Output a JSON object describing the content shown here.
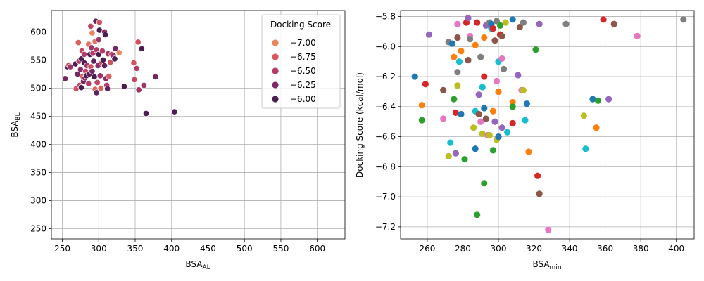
{
  "chart_data": [
    {
      "type": "scatter",
      "xlabel": "BSA",
      "xlabel_sub": "AL",
      "ylabel": "BSA",
      "ylabel_sub": "BL",
      "xlim": [
        235,
        638
      ],
      "ylim": [
        232,
        638
      ],
      "xticks": [
        250,
        300,
        350,
        400,
        450,
        500,
        550,
        600
      ],
      "yticks": [
        250,
        300,
        350,
        400,
        450,
        500,
        550,
        600
      ],
      "grid": true,
      "color_by": "Docking Score",
      "legend": {
        "title": "Docking Score",
        "placement": "top-right",
        "entries": [
          {
            "label": "−7.00",
            "color": "#e8855d"
          },
          {
            "label": "−6.75",
            "color": "#d7585d"
          },
          {
            "label": "−6.50",
            "color": "#b53a66"
          },
          {
            "label": "−6.25",
            "color": "#7f2a68"
          },
          {
            "label": "−6.00",
            "color": "#4a1e50"
          }
        ]
      },
      "points": [
        [
          254,
          517,
          -6.2
        ],
        [
          257,
          538,
          -6.1
        ],
        [
          259,
          541,
          -6.7
        ],
        [
          261,
          538,
          -6.4
        ],
        [
          268,
          543,
          -6.0
        ],
        [
          269,
          499,
          -6.7
        ],
        [
          271,
          525,
          -6.2
        ],
        [
          272,
          581,
          -6.8
        ],
        [
          273,
          548,
          -6.5
        ],
        [
          274,
          505,
          -6.6
        ],
        [
          275,
          533,
          -6.3
        ],
        [
          276,
          552,
          -6.0
        ],
        [
          276,
          501,
          -6.0
        ],
        [
          277,
          566,
          -6.6
        ],
        [
          278,
          521,
          -6.8
        ],
        [
          279,
          512,
          -6.2
        ],
        [
          280,
          560,
          -6.5
        ],
        [
          280,
          545,
          -6.0
        ],
        [
          281,
          518,
          -6.3
        ],
        [
          282,
          530,
          -6.6
        ],
        [
          283,
          522,
          -6.0
        ],
        [
          284,
          540,
          -6.4
        ],
        [
          286,
          578,
          -6.9
        ],
        [
          286,
          508,
          -6.5
        ],
        [
          287,
          525,
          -6.1
        ],
        [
          288,
          560,
          -6.0
        ],
        [
          289,
          538,
          -6.7
        ],
        [
          289,
          610,
          -6.6
        ],
        [
          290,
          572,
          -6.4
        ],
        [
          291,
          530,
          -6.2
        ],
        [
          291,
          598,
          -7.0
        ],
        [
          292,
          562,
          -6.5
        ],
        [
          293,
          548,
          -6.1
        ],
        [
          294,
          520,
          -6.0
        ],
        [
          295,
          498,
          -6.8
        ],
        [
          295,
          583,
          -6.9
        ],
        [
          296,
          619,
          -6.1
        ],
        [
          297,
          492,
          -6.1
        ],
        [
          297,
          568,
          -6.5
        ],
        [
          298,
          510,
          -6.6
        ],
        [
          299,
          540,
          -6.3
        ],
        [
          300,
          586,
          -6.4
        ],
        [
          300,
          560,
          -6.0
        ],
        [
          301,
          617,
          -6.7
        ],
        [
          301,
          603,
          -6.0
        ],
        [
          302,
          522,
          -6.4
        ],
        [
          303,
          500,
          -6.8
        ],
        [
          304,
          545,
          -6.7
        ],
        [
          305,
          566,
          -6.5
        ],
        [
          306,
          550,
          -6.0
        ],
        [
          308,
          600,
          -6.3
        ],
        [
          308,
          540,
          -6.1
        ],
        [
          309,
          595,
          -6.0
        ],
        [
          310,
          517,
          -6.3
        ],
        [
          311,
          505,
          -6.5
        ],
        [
          312,
          499,
          -6.1
        ],
        [
          313,
          561,
          -6.4
        ],
        [
          314,
          521,
          -6.8
        ],
        [
          316,
          546,
          -6.7
        ],
        [
          318,
          560,
          -6.5
        ],
        [
          320,
          558,
          -6.4
        ],
        [
          322,
          552,
          -6.0
        ],
        [
          323,
          570,
          -6.2
        ],
        [
          328,
          563,
          -7.0
        ],
        [
          335,
          503,
          -6.0
        ],
        [
          348,
          545,
          -6.7
        ],
        [
          349,
          515,
          -6.6
        ],
        [
          352,
          535,
          -6.5
        ],
        [
          354,
          582,
          -6.7
        ],
        [
          355,
          497,
          -6.4
        ],
        [
          359,
          570,
          -6.0
        ],
        [
          362,
          505,
          -6.4
        ],
        [
          365,
          455,
          -6.0
        ],
        [
          378,
          520,
          -6.2
        ],
        [
          404,
          458,
          -6.0
        ]
      ]
    },
    {
      "type": "scatter",
      "xlabel": "BSA",
      "xlabel_sub": "min",
      "ylabel": "Docking Score (kcal/mol)",
      "xlim": [
        245,
        410
      ],
      "ylim": [
        -7.28,
        -5.76
      ],
      "xticks": [
        260,
        280,
        300,
        320,
        340,
        360,
        380,
        400
      ],
      "yticks": [
        -7.2,
        -7.0,
        -6.8,
        -6.6,
        -6.4,
        -6.2,
        -6.0,
        -5.8
      ],
      "ytick_labels": [
        "−7.2",
        "−7.0",
        "−6.8",
        "−6.6",
        "−6.4",
        "−6.2",
        "−6.0",
        "−5.8"
      ],
      "grid": true,
      "palette": [
        "#1f77b4",
        "#ff7f0e",
        "#2ca02c",
        "#d62728",
        "#9467bd",
        "#8c564b",
        "#e377c2",
        "#7f7f7f",
        "#bcbd22",
        "#17becf"
      ],
      "points": [
        [
          253,
          -6.2
        ],
        [
          257,
          -6.39
        ],
        [
          257,
          -6.49
        ],
        [
          259,
          -6.25
        ],
        [
          261,
          -5.92
        ],
        [
          269,
          -6.29
        ],
        [
          269,
          -6.48
        ],
        [
          272,
          -5.97
        ],
        [
          272,
          -6.73
        ],
        [
          273,
          -6.64
        ],
        [
          274,
          -5.98
        ],
        [
          275,
          -6.07
        ],
        [
          275,
          -6.35
        ],
        [
          276,
          -6.44
        ],
        [
          276,
          -6.71
        ],
        [
          277,
          -5.94
        ],
        [
          277,
          -5.85
        ],
        [
          277,
          -6.17
        ],
        [
          277,
          -6.26
        ],
        [
          278,
          -6.1
        ],
        [
          279,
          -6.45
        ],
        [
          279,
          -6.03
        ],
        [
          281,
          -6.75
        ],
        [
          282,
          -5.84
        ],
        [
          283,
          -5.81
        ],
        [
          283,
          -6.09
        ],
        [
          284,
          -5.93
        ],
        [
          284,
          -5.95
        ],
        [
          286,
          -6.54
        ],
        [
          287,
          -6.43
        ],
        [
          287,
          -6.68
        ],
        [
          287,
          -5.99
        ],
        [
          288,
          -7.12
        ],
        [
          288,
          -5.84
        ],
        [
          289,
          -6.32
        ],
        [
          289,
          -6.45
        ],
        [
          290,
          -6.5
        ],
        [
          290,
          -6.07
        ],
        [
          291,
          -6.58
        ],
        [
          291,
          -6.27
        ],
        [
          292,
          -6.41
        ],
        [
          292,
          -5.94
        ],
        [
          292,
          -6.91
        ],
        [
          292,
          -6.2
        ],
        [
          293,
          -5.86
        ],
        [
          293,
          -6.48
        ],
        [
          294,
          -6.59
        ],
        [
          295,
          -5.84
        ],
        [
          295,
          -6.59
        ],
        [
          296,
          -5.88
        ],
        [
          296,
          -5.85
        ],
        [
          297,
          -6.43
        ],
        [
          297,
          -6.69
        ],
        [
          297,
          -5.88
        ],
        [
          298,
          -6.5
        ],
        [
          298,
          -5.96
        ],
        [
          299,
          -6.23
        ],
        [
          299,
          -5.83
        ],
        [
          299,
          -6.62
        ],
        [
          300,
          -6.1
        ],
        [
          300,
          -6.6
        ],
        [
          300,
          -6.3
        ],
        [
          301,
          -5.86
        ],
        [
          301,
          -5.92
        ],
        [
          302,
          -6.54
        ],
        [
          302,
          -5.93
        ],
        [
          302,
          -6.08
        ],
        [
          303,
          -6.15
        ],
        [
          304,
          -5.84
        ],
        [
          305,
          -6.57
        ],
        [
          308,
          -5.82
        ],
        [
          308,
          -6.37
        ],
        [
          308,
          -6.4
        ],
        [
          308,
          -6.51
        ],
        [
          311,
          -6.19
        ],
        [
          312,
          -5.87
        ],
        [
          313,
          -6.29
        ],
        [
          314,
          -5.84
        ],
        [
          314,
          -6.29
        ],
        [
          315,
          -6.49
        ],
        [
          316,
          -6.38
        ],
        [
          317,
          -6.7
        ],
        [
          321,
          -6.02
        ],
        [
          322,
          -6.86
        ],
        [
          323,
          -5.85
        ],
        [
          323,
          -6.98
        ],
        [
          328,
          -7.22
        ],
        [
          338,
          -5.85
        ],
        [
          348,
          -6.46
        ],
        [
          349,
          -6.68
        ],
        [
          353,
          -6.35
        ],
        [
          355,
          -6.54
        ],
        [
          356,
          -6.36
        ],
        [
          359,
          -5.82
        ],
        [
          362,
          -6.35
        ],
        [
          365,
          -5.85
        ],
        [
          378,
          -5.93
        ],
        [
          404,
          -5.82
        ]
      ]
    }
  ]
}
